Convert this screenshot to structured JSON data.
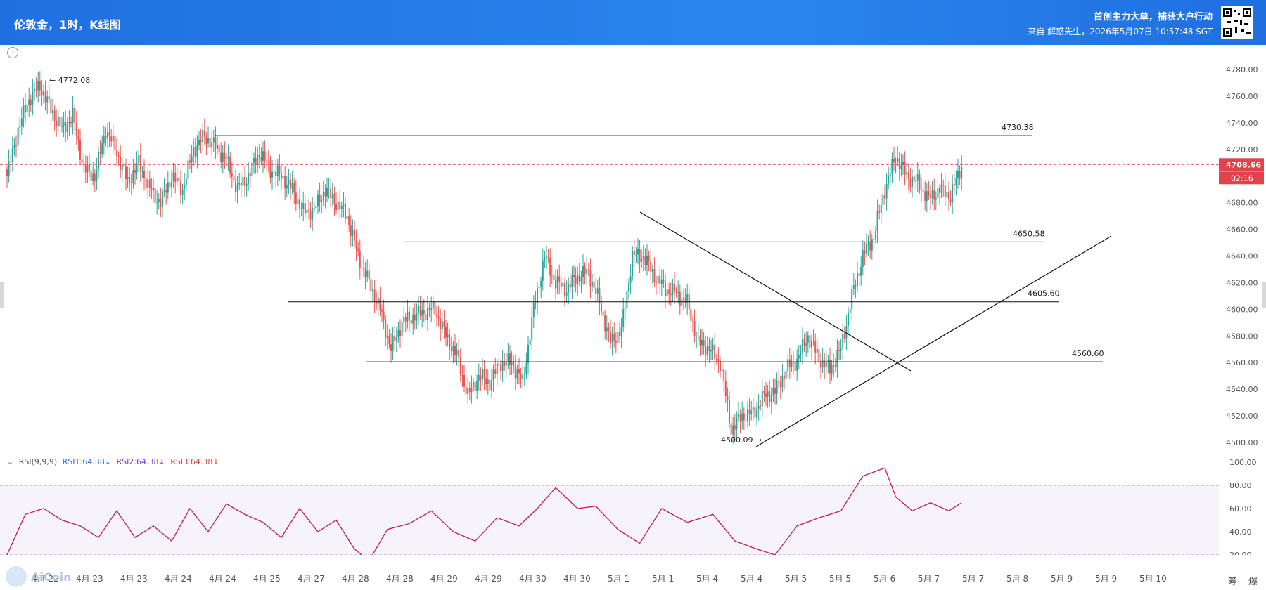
{
  "header": {
    "title": "伦敦金，1时，K线图",
    "slogan": "首创主力大单，捕获大户行动",
    "source": "来自 解惑先生，2026年5月07日 10:57:48 SGT"
  },
  "rsi_header": {
    "label": "RSI(9,9,9)",
    "rsi1": "RSI1:64.38↓",
    "rsi2": "RSI2:64.38↓",
    "rsi3": "RSI3:64.38↓"
  },
  "side_label": "筹 爆",
  "watermark": "AiCoin",
  "colors": {
    "up": "#26a69a",
    "down": "#ef5350",
    "rsi_line": "#c2185b",
    "price_line": "#e0434c",
    "header_bg": "#1f6fe0"
  },
  "chart_data": [
    {
      "type": "candlestick",
      "title": "伦敦金，1时，K线图",
      "ylim": [
        4500,
        4780
      ],
      "y_ticks": [
        "4780.00",
        "4760.00",
        "4740.00",
        "4720.00",
        "4700.00",
        "4680.00",
        "4660.00",
        "4640.00",
        "4620.00",
        "4600.00",
        "4580.00",
        "4560.00",
        "4540.00",
        "4520.00",
        "4500.00"
      ],
      "x_ticks": [
        "4月 22",
        "4月 23",
        "4月 23",
        "4月 24",
        "4月 24",
        "4月 25",
        "4月 27",
        "4月 28",
        "4月 28",
        "4月 29",
        "4月 29",
        "4月 30",
        "4月 30",
        "5月 1",
        "5月 1",
        "5月 4",
        "5月 4",
        "5月 5",
        "5月 5",
        "5月 6",
        "5月 7",
        "5月 7",
        "5月 8",
        "5月 9",
        "5月 9",
        "5月 10"
      ],
      "current_price": "4708.66",
      "countdown": "02:16",
      "high_marker": "4772.08",
      "low_marker": "4500.09",
      "levels": [
        {
          "label": "4730.38",
          "value": 4730.38
        },
        {
          "label": "4650.58",
          "value": 4650.58
        },
        {
          "label": "4605.60",
          "value": 4605.6
        },
        {
          "label": "4560.60",
          "value": 4560.6
        }
      ],
      "anchors": [
        [
          0,
          4700
        ],
        [
          6,
          4735
        ],
        [
          12,
          4758
        ],
        [
          18,
          4768
        ],
        [
          24,
          4750
        ],
        [
          30,
          4735
        ],
        [
          36,
          4745
        ],
        [
          42,
          4705
        ],
        [
          48,
          4700
        ],
        [
          54,
          4735
        ],
        [
          60,
          4718
        ],
        [
          66,
          4695
        ],
        [
          72,
          4710
        ],
        [
          78,
          4690
        ],
        [
          84,
          4680
        ],
        [
          90,
          4700
        ],
        [
          96,
          4690
        ],
        [
          102,
          4720
        ],
        [
          108,
          4730
        ],
        [
          114,
          4722
        ],
        [
          120,
          4712
        ],
        [
          126,
          4690
        ],
        [
          132,
          4700
        ],
        [
          138,
          4718
        ],
        [
          144,
          4705
        ],
        [
          150,
          4700
        ],
        [
          156,
          4690
        ],
        [
          162,
          4673
        ],
        [
          168,
          4675
        ],
        [
          174,
          4690
        ],
        [
          180,
          4680
        ],
        [
          186,
          4670
        ],
        [
          192,
          4640
        ],
        [
          198,
          4620
        ],
        [
          204,
          4600
        ],
        [
          210,
          4570
        ],
        [
          216,
          4590
        ],
        [
          222,
          4595
        ],
        [
          228,
          4598
        ],
        [
          234,
          4600
        ],
        [
          240,
          4580
        ],
        [
          246,
          4565
        ],
        [
          252,
          4535
        ],
        [
          258,
          4550
        ],
        [
          264,
          4545
        ],
        [
          270,
          4560
        ],
        [
          276,
          4560
        ],
        [
          282,
          4545
        ],
        [
          288,
          4600
        ],
        [
          294,
          4640
        ],
        [
          300,
          4620
        ],
        [
          306,
          4615
        ],
        [
          312,
          4625
        ],
        [
          318,
          4628
        ],
        [
          324,
          4605
        ],
        [
          330,
          4575
        ],
        [
          336,
          4585
        ],
        [
          342,
          4640
        ],
        [
          348,
          4640
        ],
        [
          354,
          4625
        ],
        [
          360,
          4615
        ],
        [
          366,
          4612
        ],
        [
          372,
          4605
        ],
        [
          378,
          4575
        ],
        [
          384,
          4570
        ],
        [
          390,
          4560
        ],
        [
          396,
          4510
        ],
        [
          402,
          4520
        ],
        [
          408,
          4522
        ],
        [
          414,
          4535
        ],
        [
          420,
          4538
        ],
        [
          426,
          4555
        ],
        [
          432,
          4562
        ],
        [
          438,
          4580
        ],
        [
          444,
          4563
        ],
        [
          450,
          4555
        ],
        [
          456,
          4570
        ],
        [
          462,
          4610
        ],
        [
          468,
          4640
        ],
        [
          474,
          4655
        ],
        [
          480,
          4690
        ],
        [
          486,
          4715
        ],
        [
          492,
          4700
        ],
        [
          498,
          4695
        ],
        [
          504,
          4683
        ],
        [
          510,
          4690
        ],
        [
          516,
          4685
        ],
        [
          522,
          4708
        ]
      ],
      "rsi": {
        "label": "RSI(9,9,9)",
        "ylim": [
          20,
          100
        ],
        "y_ticks": [
          "100.00",
          "80.00",
          "60.00",
          "40.00",
          "20.00"
        ],
        "levels": [
          80,
          20
        ],
        "values": [
          [
            0,
            20
          ],
          [
            10,
            55
          ],
          [
            20,
            60
          ],
          [
            30,
            50
          ],
          [
            40,
            45
          ],
          [
            50,
            35
          ],
          [
            60,
            58
          ],
          [
            70,
            35
          ],
          [
            80,
            45
          ],
          [
            90,
            32
          ],
          [
            100,
            60
          ],
          [
            110,
            40
          ],
          [
            120,
            64
          ],
          [
            130,
            55
          ],
          [
            140,
            48
          ],
          [
            150,
            35
          ],
          [
            160,
            60
          ],
          [
            170,
            40
          ],
          [
            180,
            50
          ],
          [
            190,
            25
          ],
          [
            198,
            15
          ],
          [
            208,
            42
          ],
          [
            220,
            47
          ],
          [
            232,
            58
          ],
          [
            244,
            40
          ],
          [
            256,
            32
          ],
          [
            268,
            52
          ],
          [
            280,
            45
          ],
          [
            290,
            60
          ],
          [
            300,
            78
          ],
          [
            312,
            60
          ],
          [
            322,
            62
          ],
          [
            334,
            42
          ],
          [
            346,
            30
          ],
          [
            358,
            60
          ],
          [
            372,
            48
          ],
          [
            386,
            55
          ],
          [
            398,
            32
          ],
          [
            410,
            25
          ],
          [
            420,
            20
          ],
          [
            432,
            45
          ],
          [
            444,
            52
          ],
          [
            456,
            58
          ],
          [
            468,
            88
          ],
          [
            480,
            95
          ],
          [
            486,
            70
          ],
          [
            495,
            58
          ],
          [
            505,
            65
          ],
          [
            515,
            58
          ],
          [
            522,
            65
          ]
        ]
      }
    }
  ]
}
